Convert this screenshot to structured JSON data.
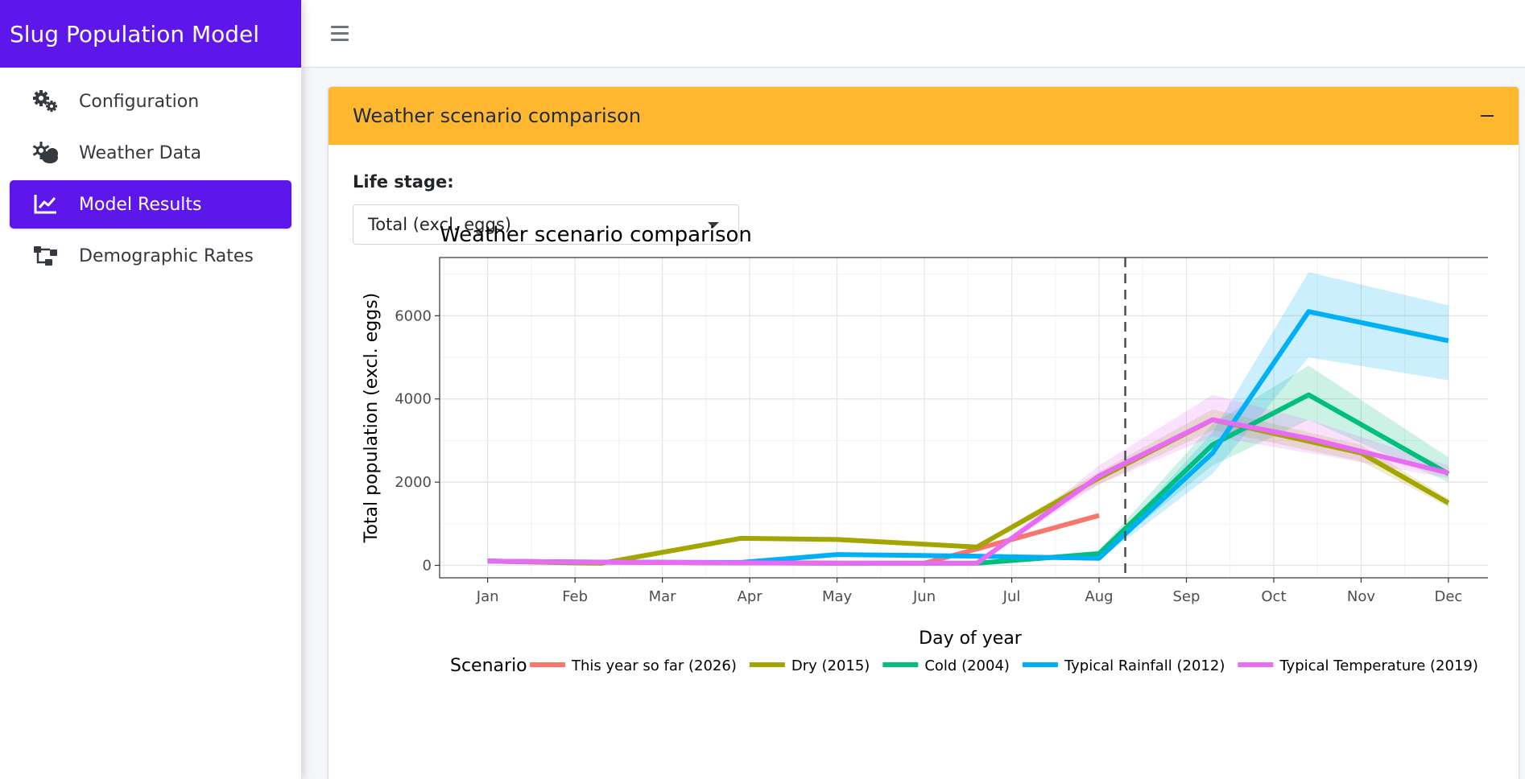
{
  "app": {
    "title": "Slug Population Model"
  },
  "sidebar": {
    "items": [
      {
        "label": "Configuration",
        "icon": "gears-icon",
        "active": false
      },
      {
        "label": "Weather Data",
        "icon": "cloud-sun-icon",
        "active": false
      },
      {
        "label": "Model Results",
        "icon": "line-chart-icon",
        "active": true
      },
      {
        "label": "Demographic Rates",
        "icon": "diagram-icon",
        "active": false
      }
    ]
  },
  "card": {
    "title": "Weather scenario comparison"
  },
  "life_stage": {
    "label": "Life stage:",
    "value": "Total (excl. eggs)"
  },
  "chart_data": {
    "type": "line",
    "title": "Weather scenario comparison",
    "xlabel": "Day of year",
    "ylabel": "Total population (excl. eggs)",
    "x_ticks": [
      "Jan",
      "Feb",
      "Mar",
      "Apr",
      "May",
      "Jun",
      "Jul",
      "Aug",
      "Sep",
      "Oct",
      "Nov",
      "Dec"
    ],
    "y_ticks": [
      0,
      2000,
      4000,
      6000
    ],
    "ylim": [
      -300,
      7400
    ],
    "xlim": [
      0.45,
      12.6
    ],
    "vline_x": 8.3,
    "legend_title": "Scenario",
    "legend_position": "bottom",
    "grid": true,
    "series": [
      {
        "name": "This year so far (2026)",
        "color": "#f8766d",
        "x": [
          1,
          2,
          3,
          4,
          5,
          6,
          7,
          8
        ],
        "y": [
          100,
          80,
          70,
          60,
          55,
          50,
          620,
          1200
        ],
        "lower": [],
        "upper": []
      },
      {
        "name": "Dry (2015)",
        "color": "#a3a500",
        "x": [
          1,
          2,
          2.3,
          3.9,
          5,
          6.6,
          8,
          9.3,
          11,
          12
        ],
        "y": [
          100,
          60,
          50,
          650,
          620,
          440,
          2100,
          3500,
          2700,
          1500
        ],
        "lower": [
          100,
          60,
          50,
          620,
          590,
          410,
          1950,
          3250,
          2500,
          1400
        ],
        "upper": [
          100,
          60,
          50,
          680,
          650,
          470,
          2250,
          3750,
          2900,
          1600
        ]
      },
      {
        "name": "Cold (2004)",
        "color": "#00bf7d",
        "x": [
          1,
          2,
          4,
          5,
          6.6,
          8,
          9.3,
          10.4,
          12
        ],
        "y": [
          100,
          80,
          60,
          50,
          50,
          280,
          2900,
          4100,
          2200
        ],
        "lower": [
          100,
          80,
          60,
          50,
          50,
          200,
          2400,
          3500,
          2000
        ],
        "upper": [
          100,
          80,
          60,
          50,
          50,
          360,
          3400,
          4800,
          2600
        ]
      },
      {
        "name": "Typical Rainfall (2012)",
        "color": "#00b0f6",
        "x": [
          1,
          2,
          3.9,
          5,
          6.6,
          8,
          9.3,
          10.4,
          12
        ],
        "y": [
          100,
          80,
          70,
          260,
          220,
          170,
          2700,
          6100,
          5400
        ],
        "lower": [
          100,
          80,
          70,
          240,
          200,
          130,
          2200,
          5000,
          4450
        ],
        "upper": [
          100,
          80,
          70,
          280,
          240,
          210,
          3200,
          7050,
          6250
        ]
      },
      {
        "name": "Typical Temperature (2019)",
        "color": "#e76bf3",
        "x": [
          1,
          2,
          3.9,
          5,
          6.6,
          8,
          9.3,
          10.4,
          12
        ],
        "y": [
          100,
          80,
          60,
          50,
          50,
          2150,
          3500,
          3050,
          2220
        ],
        "lower": [
          100,
          80,
          60,
          50,
          50,
          1950,
          3100,
          2700,
          2100
        ],
        "upper": [
          100,
          80,
          60,
          50,
          50,
          2400,
          4100,
          3500,
          2400
        ]
      }
    ]
  }
}
